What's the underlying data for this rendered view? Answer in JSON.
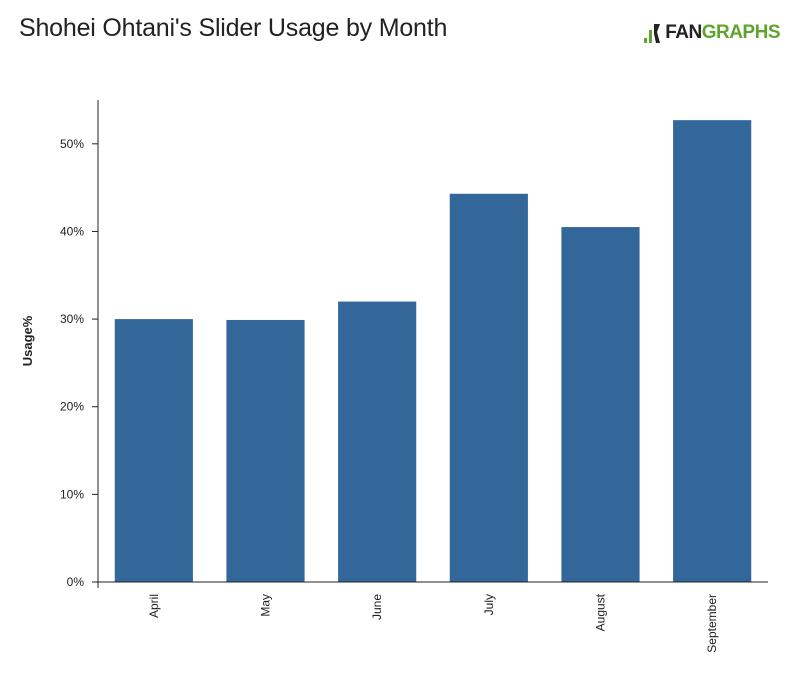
{
  "header": {
    "title": "Shohei Ohtani's Slider Usage by Month",
    "logo_part1": "FAN",
    "logo_part2": "GRAPHS"
  },
  "colors": {
    "bar": "#336699",
    "axis": "#222222",
    "logo_green": "#5fa52d"
  },
  "chart_data": {
    "type": "bar",
    "categories": [
      "April",
      "May",
      "June",
      "July",
      "August",
      "September"
    ],
    "values": [
      30.0,
      29.9,
      32.0,
      44.3,
      40.5,
      52.7
    ],
    "title": "Shohei Ohtani's Slider Usage by Month",
    "xlabel": "",
    "ylabel": "Usage%",
    "ylim": [
      0,
      55
    ],
    "yticks": [
      "0%",
      "10%",
      "20%",
      "30%",
      "40%",
      "50%"
    ],
    "ytick_values": [
      0,
      10,
      20,
      30,
      40,
      50
    ],
    "grid": false,
    "legend": "none"
  }
}
